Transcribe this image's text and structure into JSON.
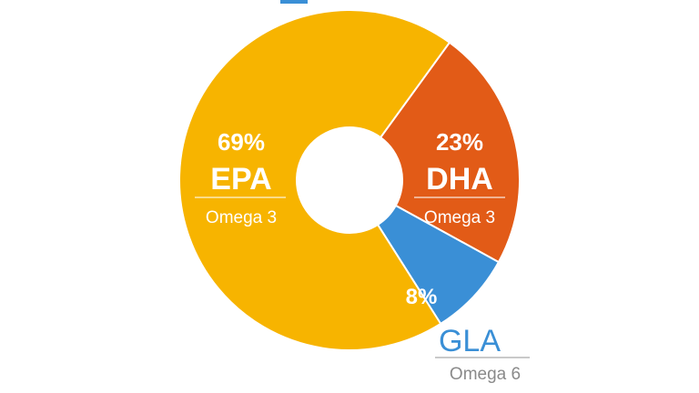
{
  "colors": {
    "epa": "#F7B400",
    "dha": "#E25B17",
    "gla": "#3A8FD6",
    "gla_text": "#3A8FD6",
    "sublabel_outside": "#8A8A8A",
    "white": "#FFFFFF"
  },
  "chart_data": {
    "type": "pie",
    "variant": "donut",
    "title": "",
    "slices": [
      {
        "label": "EPA",
        "value": 69,
        "value_label": "69%",
        "group": "Omega 3"
      },
      {
        "label": "DHA",
        "value": 23,
        "value_label": "23%",
        "group": "Omega 3"
      },
      {
        "label": "GLA",
        "value": 8,
        "value_label": "8%",
        "group": "Omega 6"
      }
    ]
  }
}
